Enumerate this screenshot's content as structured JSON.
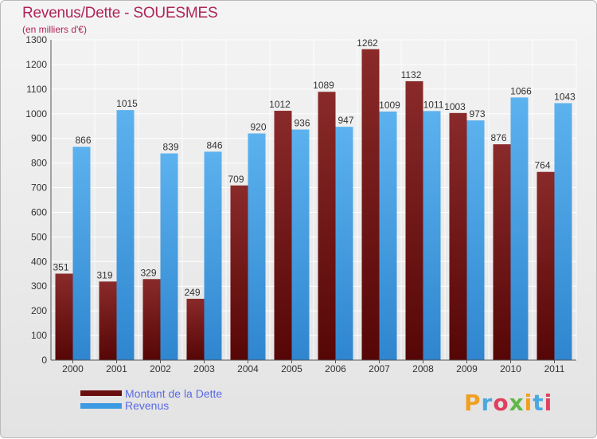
{
  "chart_data": {
    "type": "bar",
    "title": "Revenus/Dette - SOUESMES",
    "subtitle": "(en milliers d'€)",
    "categories": [
      "2000",
      "2001",
      "2002",
      "2003",
      "2004",
      "2005",
      "2006",
      "2007",
      "2008",
      "2009",
      "2010",
      "2011"
    ],
    "series": [
      {
        "name": "Montant de la Dette",
        "color": "#7a1818",
        "values": [
          351,
          319,
          329,
          249,
          709,
          1012,
          1089,
          1262,
          1132,
          1003,
          876,
          764
        ]
      },
      {
        "name": "Revenus",
        "color": "#3d9be3",
        "values": [
          866,
          1015,
          839,
          846,
          920,
          936,
          947,
          1009,
          1011,
          973,
          1066,
          1043
        ]
      }
    ],
    "ylim": [
      0,
      1300
    ],
    "yticks": [
      0,
      100,
      200,
      300,
      400,
      500,
      600,
      700,
      800,
      900,
      1000,
      1100,
      1200,
      1300
    ],
    "grid": true,
    "legend_position": "bottom-left"
  },
  "brand": {
    "logo_letters": [
      {
        "ch": "P",
        "color": "#f0a020"
      },
      {
        "ch": "r",
        "color": "#4aa8e0"
      },
      {
        "ch": "o",
        "color": "#e04060"
      },
      {
        "ch": "x",
        "color": "#60b848"
      },
      {
        "ch": "i",
        "color": "#f0a020"
      },
      {
        "ch": "t",
        "color": "#4aa8e0"
      },
      {
        "ch": "i",
        "color": "#e04060"
      }
    ]
  }
}
